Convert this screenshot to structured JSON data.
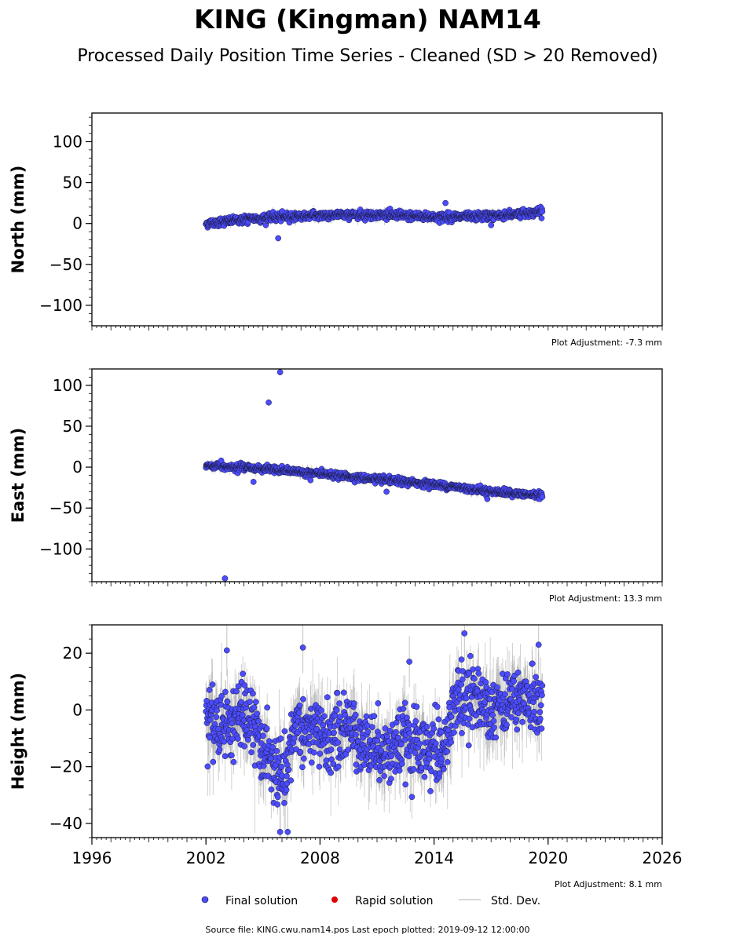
{
  "figure": {
    "title": "KING (Kingman) NAM14",
    "subtitle": "Processed Daily Position Time Series - Cleaned (SD > 20 Removed)",
    "footer": "Source file: KING.cwu.nam14.pos  Last epoch plotted: 2019-09-12 12:00:00"
  },
  "legend": {
    "final_label": "Final solution",
    "rapid_label": "Rapid solution",
    "std_label": "Std. Dev."
  },
  "colors": {
    "final": "#4b4bff",
    "final_edge": "#1a1a3a",
    "rapid": "#e00000",
    "std": "#9a9a9a"
  },
  "chart_data": [
    {
      "type": "scatter",
      "panel": "north",
      "ylabel": "North (mm)",
      "adjustment_label": "Plot Adjustment: -7.3 mm",
      "xlim": [
        1996,
        2026
      ],
      "ylim": [
        -125,
        135
      ],
      "yticks": [
        100,
        50,
        0,
        -50,
        -100
      ],
      "ytick_labels": [
        "100",
        "50",
        "0",
        "−50",
        "−100"
      ],
      "yminor_step": 10,
      "series": [
        {
          "name": "Final solution",
          "data_start": 2002.0,
          "data_end": 2019.7,
          "trend": [
            [
              2002.0,
              0
            ],
            [
              2004.0,
              5
            ],
            [
              2006.0,
              8
            ],
            [
              2008.0,
              10
            ],
            [
              2010.0,
              11
            ],
            [
              2012.0,
              10
            ],
            [
              2014.0,
              8
            ],
            [
              2016.0,
              8
            ],
            [
              2018.0,
              11
            ],
            [
              2019.7,
              14
            ]
          ],
          "scatter_sd": 2.5,
          "error_sd": 2.5,
          "outliers": [
            [
              2005.8,
              -18
            ],
            [
              2014.6,
              25
            ],
            [
              2017.0,
              -2
            ]
          ]
        }
      ]
    },
    {
      "type": "scatter",
      "panel": "east",
      "ylabel": "East (mm)",
      "adjustment_label": "Plot Adjustment: 13.3 mm",
      "xlim": [
        1996,
        2026
      ],
      "ylim": [
        -140,
        120
      ],
      "yticks": [
        100,
        50,
        0,
        -50,
        -100
      ],
      "ytick_labels": [
        "100",
        "50",
        "0",
        "−50",
        "−100"
      ],
      "yminor_step": 10,
      "series": [
        {
          "name": "Final solution",
          "data_start": 2002.0,
          "data_end": 2019.7,
          "trend": [
            [
              2002.0,
              2
            ],
            [
              2004.0,
              0
            ],
            [
              2006.0,
              -4
            ],
            [
              2008.0,
              -8
            ],
            [
              2010.0,
              -13
            ],
            [
              2012.0,
              -17
            ],
            [
              2014.0,
              -21
            ],
            [
              2016.0,
              -27
            ],
            [
              2018.0,
              -32
            ],
            [
              2019.7,
              -35
            ]
          ],
          "scatter_sd": 2.0,
          "error_sd": 2.5,
          "outliers": [
            [
              2005.3,
              79
            ],
            [
              2005.9,
              116
            ],
            [
              2003.0,
              -136
            ],
            [
              2004.5,
              -18
            ],
            [
              2011.5,
              -30
            ],
            [
              2016.8,
              -39
            ],
            [
              2002.8,
              8
            ],
            [
              2007.5,
              -16
            ]
          ]
        }
      ]
    },
    {
      "type": "scatter",
      "panel": "height",
      "ylabel": "Height (mm)",
      "adjustment_label": "Plot Adjustment: 8.1 mm",
      "xlim": [
        1996,
        2026
      ],
      "ylim": [
        -45,
        30
      ],
      "yticks": [
        20,
        0,
        -20,
        -40
      ],
      "ytick_labels": [
        "20",
        "0",
        "−20",
        "−40"
      ],
      "yminor_step": 5,
      "xticks": [
        1996,
        2002,
        2008,
        2014,
        2020,
        2026
      ],
      "xtick_labels": [
        "1996",
        "2002",
        "2008",
        "2014",
        "2020",
        "2026"
      ],
      "series": [
        {
          "name": "Final solution",
          "data_start": 2002.0,
          "data_end": 2019.7,
          "trend": [
            [
              2002.0,
              -3
            ],
            [
              2003.0,
              -5
            ],
            [
              2004.0,
              -2
            ],
            [
              2004.8,
              -10
            ],
            [
              2005.5,
              -20
            ],
            [
              2006.2,
              -28
            ],
            [
              2006.6,
              -5
            ],
            [
              2007.5,
              -8
            ],
            [
              2008.5,
              -10
            ],
            [
              2009.5,
              -6
            ],
            [
              2010.5,
              -12
            ],
            [
              2011.5,
              -14
            ],
            [
              2012.5,
              -12
            ],
            [
              2013.5,
              -15
            ],
            [
              2014.7,
              -12
            ],
            [
              2015.0,
              3
            ],
            [
              2016.0,
              5
            ],
            [
              2017.0,
              2
            ],
            [
              2018.0,
              4
            ],
            [
              2019.0,
              3
            ],
            [
              2019.7,
              2
            ]
          ],
          "scatter_sd": 6,
          "error_sd": 6,
          "outliers": [
            [
              2003.1,
              21
            ],
            [
              2005.9,
              -43
            ],
            [
              2006.3,
              -43
            ],
            [
              2007.1,
              22
            ],
            [
              2012.7,
              17
            ],
            [
              2015.6,
              27
            ],
            [
              2019.5,
              23
            ]
          ]
        }
      ]
    }
  ]
}
